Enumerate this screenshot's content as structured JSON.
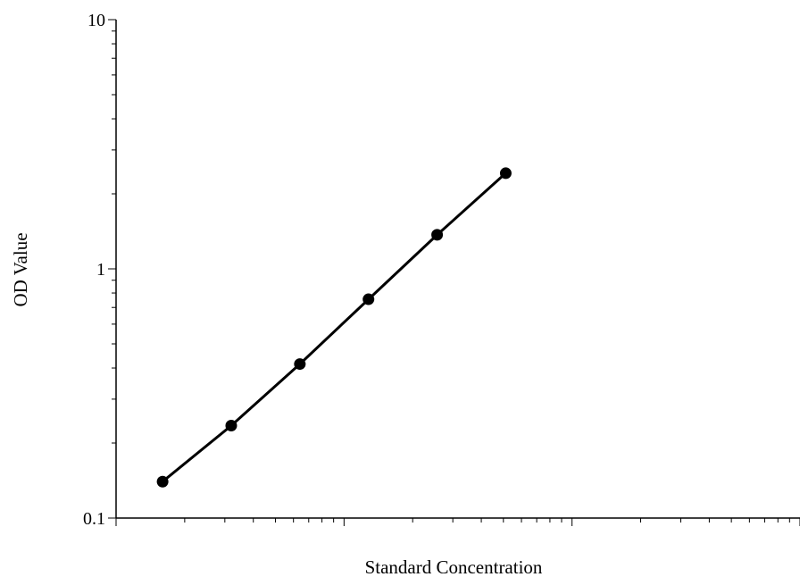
{
  "chart_data": {
    "type": "line",
    "title": "",
    "xlabel": "Standard Concentration",
    "ylabel": "OD Value",
    "x_scale": "log",
    "y_scale": "log",
    "xlim": [
      1,
      1000
    ],
    "ylim": [
      0.1,
      10
    ],
    "y_ticks": [
      {
        "value": 0.1,
        "label": "0.1"
      },
      {
        "value": 1,
        "label": "1"
      },
      {
        "value": 10,
        "label": "10"
      }
    ],
    "x_tick_labels_shown": false,
    "grid": false,
    "legend": "none",
    "marker": "circle",
    "line_color": "#000000",
    "marker_color": "#000000",
    "series": [
      {
        "x": [
          1.6,
          3.2,
          6.4,
          12.8,
          25.6,
          51.2
        ],
        "y": [
          0.14,
          0.235,
          0.415,
          0.755,
          1.37,
          2.42
        ]
      }
    ]
  }
}
